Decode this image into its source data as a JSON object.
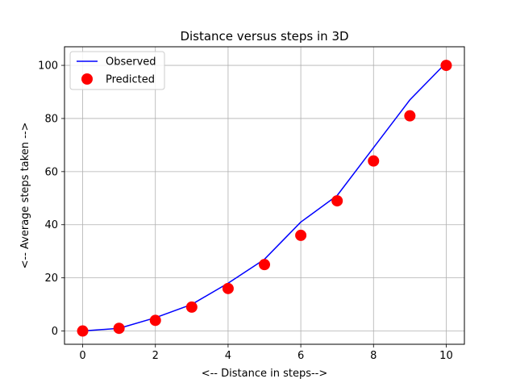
{
  "chart_data": {
    "type": "line",
    "title": "Distance versus steps in 3D",
    "xlabel": "<-- Distance in steps-->",
    "ylabel": "<-- Average steps taken -->",
    "xlim": [
      -0.5,
      10.5
    ],
    "ylim": [
      -5,
      107
    ],
    "x_ticks": [
      0,
      2,
      4,
      6,
      8,
      10
    ],
    "y_ticks": [
      0,
      20,
      40,
      60,
      80,
      100
    ],
    "grid": true,
    "legend_position": "top-left",
    "series": [
      {
        "name": "Observed",
        "kind": "line",
        "color": "#0000ff",
        "x": [
          0,
          1,
          2,
          3,
          4,
          5,
          6,
          7,
          8,
          9,
          10
        ],
        "y": [
          0,
          1,
          5,
          10,
          18,
          27,
          41,
          51,
          69,
          87,
          101
        ]
      },
      {
        "name": "Predicted",
        "kind": "scatter",
        "color": "#ff0000",
        "x": [
          0,
          1,
          2,
          3,
          4,
          5,
          6,
          7,
          8,
          9,
          10
        ],
        "y": [
          0,
          1,
          4,
          9,
          16,
          25,
          36,
          49,
          64,
          81,
          100
        ]
      }
    ]
  }
}
